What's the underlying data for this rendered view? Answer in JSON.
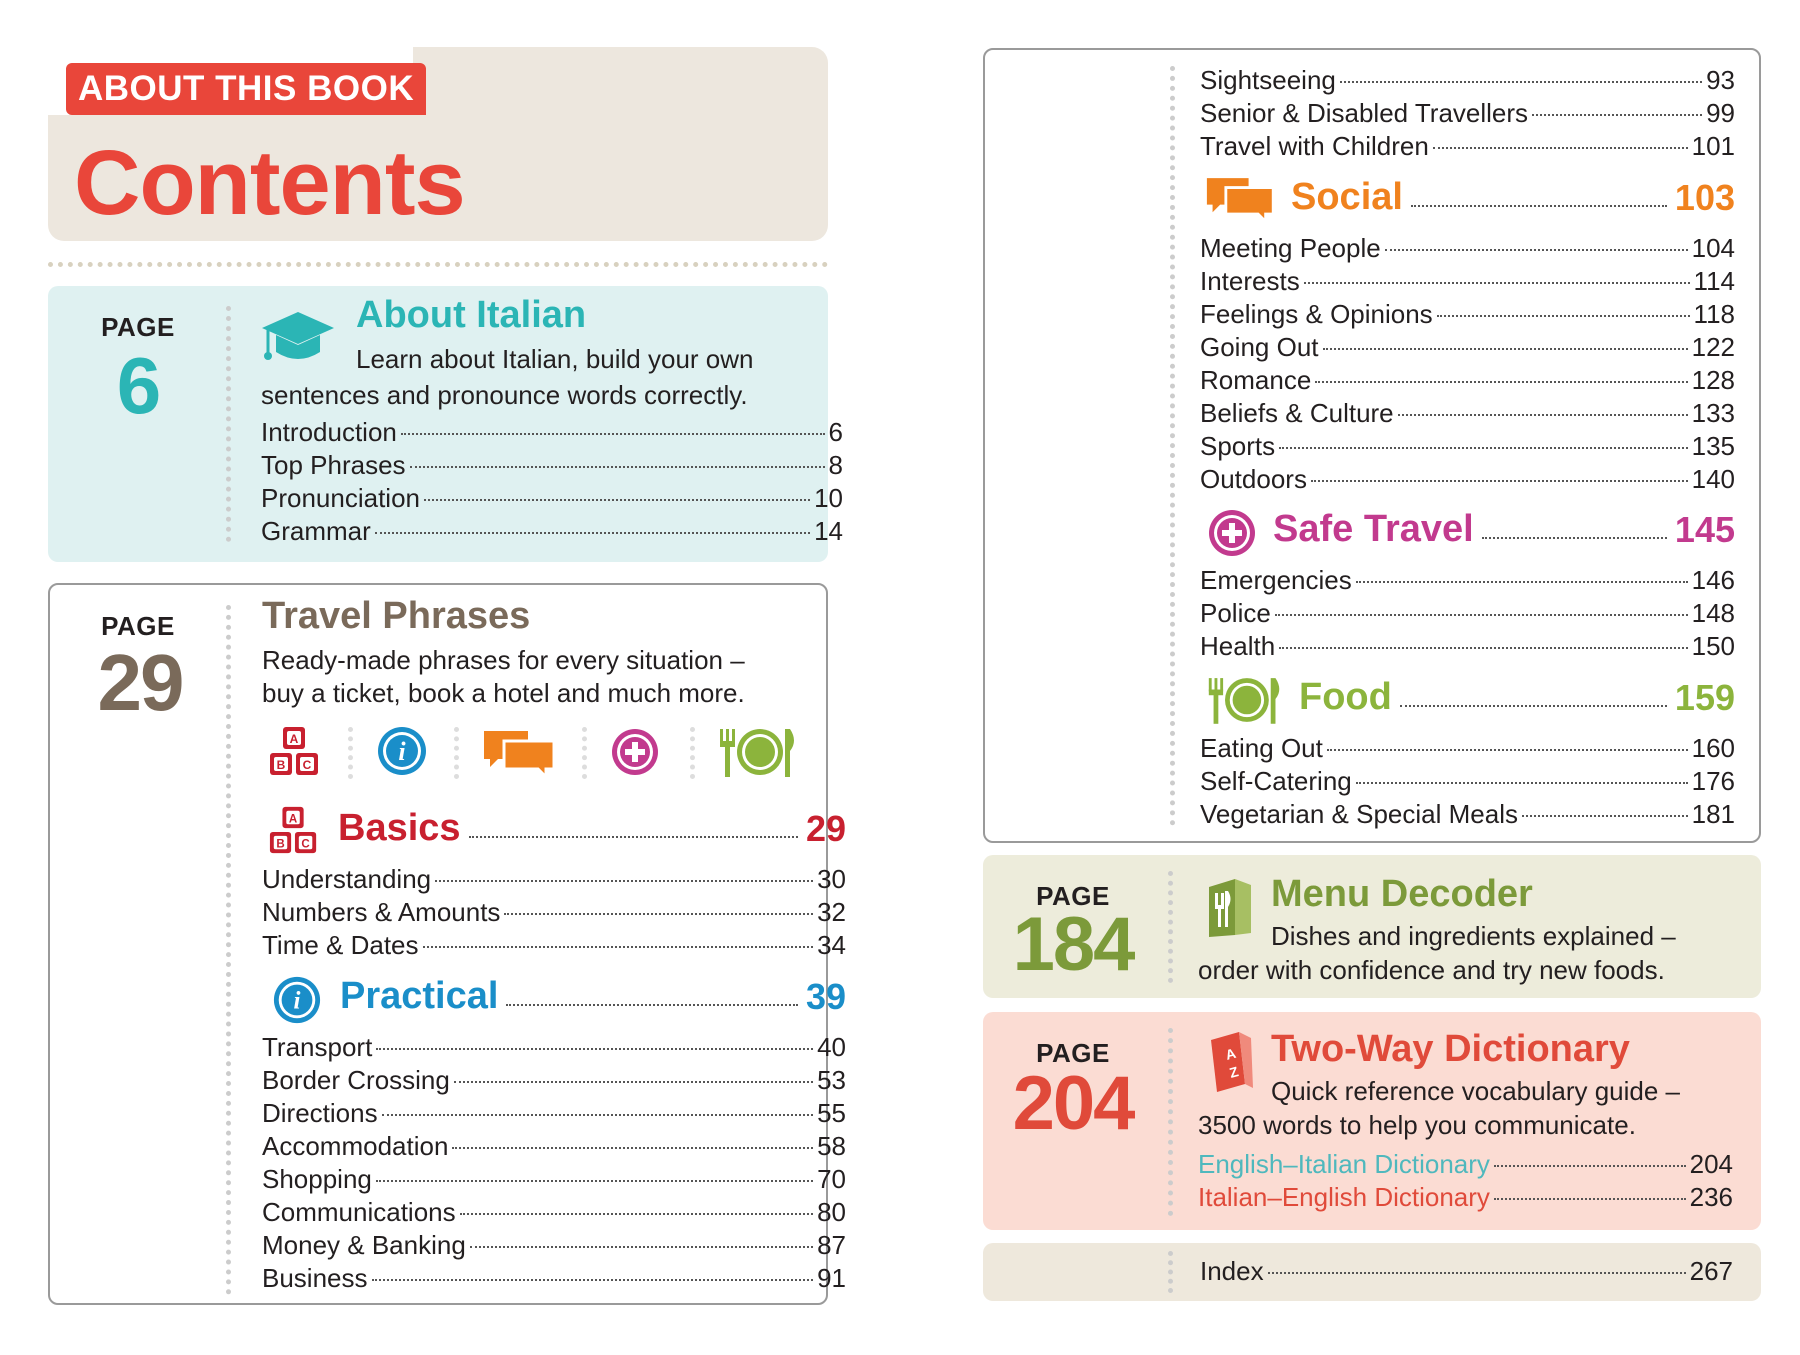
{
  "header": {
    "tag": "ABOUT THIS BOOK",
    "title": "Contents"
  },
  "about_italian": {
    "page_label": "PAGE",
    "page_number": "6",
    "title": "About Italian",
    "description_line1": "Learn about Italian, build your own",
    "description_line2": "sentences and pronounce words correctly.",
    "icon": "graduation-cap-icon",
    "items": [
      {
        "label": "Introduction",
        "page": "6"
      },
      {
        "label": "Top Phrases",
        "page": "8"
      },
      {
        "label": "Pronunciation",
        "page": "10"
      },
      {
        "label": "Grammar",
        "page": "14"
      }
    ]
  },
  "travel_phrases": {
    "page_label": "PAGE",
    "page_number": "29",
    "title": "Travel Phrases",
    "description_line1": "Ready-made phrases for every situation –",
    "description_line2": "buy a ticket, book a hotel and much more.",
    "icons": [
      "abc-blocks-icon",
      "info-icon",
      "speech-bubbles-icon",
      "plus-circle-icon",
      "plate-cutlery-icon"
    ],
    "basics": {
      "title": "Basics",
      "page": "29",
      "items": [
        {
          "label": "Understanding",
          "page": "30"
        },
        {
          "label": "Numbers & Amounts",
          "page": "32"
        },
        {
          "label": "Time & Dates",
          "page": "34"
        }
      ]
    },
    "practical": {
      "title": "Practical",
      "page": "39",
      "items": [
        {
          "label": "Transport",
          "page": "40"
        },
        {
          "label": "Border Crossing",
          "page": "53"
        },
        {
          "label": "Directions",
          "page": "55"
        },
        {
          "label": "Accommodation",
          "page": "58"
        },
        {
          "label": "Shopping",
          "page": "70"
        },
        {
          "label": "Communications",
          "page": "80"
        },
        {
          "label": "Money & Banking",
          "page": "87"
        },
        {
          "label": "Business",
          "page": "91"
        }
      ]
    }
  },
  "right_panel": {
    "top_items": [
      {
        "label": "Sightseeing",
        "page": "93"
      },
      {
        "label": "Senior & Disabled Travellers",
        "page": "99"
      },
      {
        "label": "Travel with Children",
        "page": "101"
      }
    ],
    "social": {
      "title": "Social",
      "page": "103",
      "items": [
        {
          "label": "Meeting People",
          "page": "104"
        },
        {
          "label": "Interests",
          "page": "114"
        },
        {
          "label": "Feelings & Opinions",
          "page": "118"
        },
        {
          "label": "Going Out",
          "page": "122"
        },
        {
          "label": "Romance",
          "page": "128"
        },
        {
          "label": "Beliefs & Culture",
          "page": "133"
        },
        {
          "label": "Sports",
          "page": "135"
        },
        {
          "label": "Outdoors",
          "page": "140"
        }
      ]
    },
    "safe_travel": {
      "title": "Safe Travel",
      "page": "145",
      "items": [
        {
          "label": "Emergencies",
          "page": "146"
        },
        {
          "label": "Police",
          "page": "148"
        },
        {
          "label": "Health",
          "page": "150"
        }
      ]
    },
    "food": {
      "title": "Food",
      "page": "159",
      "items": [
        {
          "label": "Eating Out",
          "page": "160"
        },
        {
          "label": "Self-Catering",
          "page": "176"
        },
        {
          "label": "Vegetarian & Special Meals",
          "page": "181"
        }
      ]
    }
  },
  "menu_decoder": {
    "page_label": "PAGE",
    "page_number": "184",
    "title": "Menu Decoder",
    "description_line1": "Dishes and ingredients explained –",
    "description_line2": "order with confidence and try new foods.",
    "icon": "menu-book-icon"
  },
  "dictionary": {
    "page_label": "PAGE",
    "page_number": "204",
    "title": "Two-Way Dictionary",
    "description_line1": "Quick reference vocabulary guide –",
    "description_line2": "3500 words to help you communicate.",
    "icon": "dictionary-book-icon",
    "items": [
      {
        "label": "English–Italian Dictionary",
        "page": "204"
      },
      {
        "label": "Italian–English Dictionary",
        "page": "236"
      }
    ]
  },
  "index": {
    "label": "Index",
    "page": "267"
  },
  "colors": {
    "red": "#e9463a",
    "teal": "#2bb5b5",
    "brown": "#7a6a5a",
    "basics_red": "#c8202f",
    "practical_blue": "#1a8ec9",
    "social_orange": "#f0821e",
    "safe_magenta": "#c23a8e",
    "food_green": "#8cb43c",
    "menu_green": "#7c9a3a",
    "dict_teal": "#4fb8bd",
    "dict_red": "#e04a3a"
  }
}
